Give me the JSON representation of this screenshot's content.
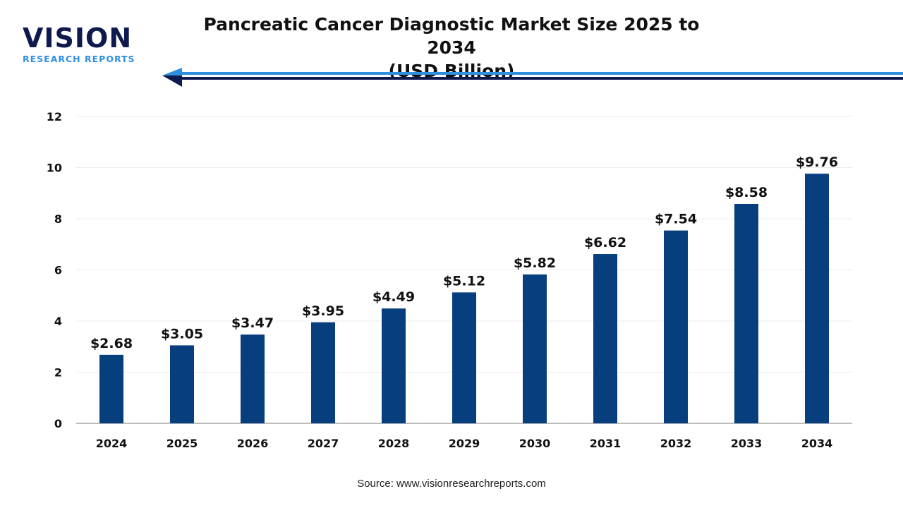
{
  "brand": {
    "logo_top": "VISION",
    "logo_bottom": "RESEARCH REPORTS"
  },
  "source": "Source: www.visionresearchreports.com",
  "colors": {
    "bar": "#073e7e",
    "arrow_light": "#2e8fe0",
    "arrow_dark": "#0e1a4d"
  },
  "chart_data": {
    "type": "bar",
    "title": "Pancreatic Cancer Diagnostic Market Size 2025 to 2034",
    "subtitle": "(USD Billion)",
    "categories": [
      "2024",
      "2025",
      "2026",
      "2027",
      "2028",
      "2029",
      "2030",
      "2031",
      "2032",
      "2033",
      "2034"
    ],
    "values": [
      2.68,
      3.05,
      3.47,
      3.95,
      4.49,
      5.12,
      5.82,
      6.62,
      7.54,
      8.58,
      9.76
    ],
    "data_labels": [
      "$2.68",
      "$3.05",
      "$3.47",
      "$3.95",
      "$4.49",
      "$5.12",
      "$5.82",
      "$6.62",
      "$7.54",
      "$8.58",
      "$9.76"
    ],
    "yticks": [
      "0",
      "2",
      "4",
      "6",
      "8",
      "10",
      "12"
    ],
    "ylim": [
      0,
      12
    ],
    "xlabel": "",
    "ylabel": "",
    "grid": true,
    "legend": "none"
  }
}
